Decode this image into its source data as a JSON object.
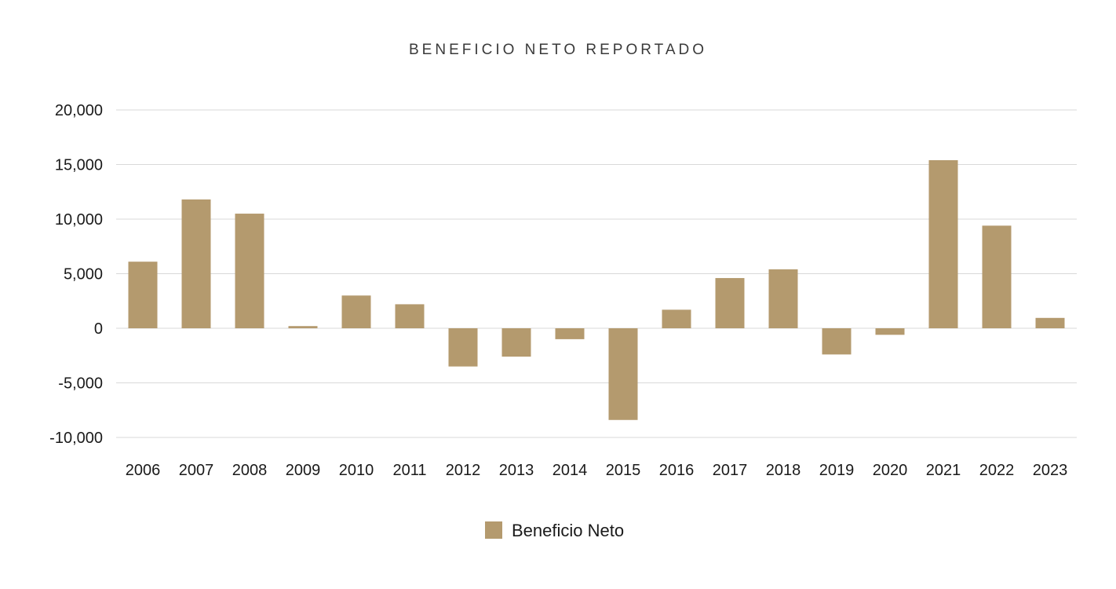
{
  "chart_data": {
    "type": "bar",
    "title": "BENEFICIO NETO REPORTADO",
    "xlabel": "",
    "ylabel": "",
    "categories": [
      "2006",
      "2007",
      "2008",
      "2009",
      "2010",
      "2011",
      "2012",
      "2013",
      "2014",
      "2015",
      "2016",
      "2017",
      "2018",
      "2019",
      "2020",
      "2021",
      "2022",
      "2023"
    ],
    "series": [
      {
        "name": "Beneficio Neto",
        "color": "#b49a6e",
        "values": [
          6100,
          11800,
          10500,
          200,
          3000,
          2200,
          -3500,
          -2600,
          -1000,
          -8400,
          1700,
          4600,
          5400,
          -2400,
          -600,
          15400,
          9400,
          950
        ]
      }
    ],
    "ylim": [
      -10000,
      20000
    ],
    "yticks": [
      20000,
      15000,
      10000,
      5000,
      0,
      -5000,
      -10000
    ],
    "ytick_labels": [
      "20,000",
      "15,000",
      "10,000",
      "5,000",
      "0",
      "-5,000",
      "-10,000"
    ],
    "grid": true,
    "legend": "bottom-center"
  }
}
